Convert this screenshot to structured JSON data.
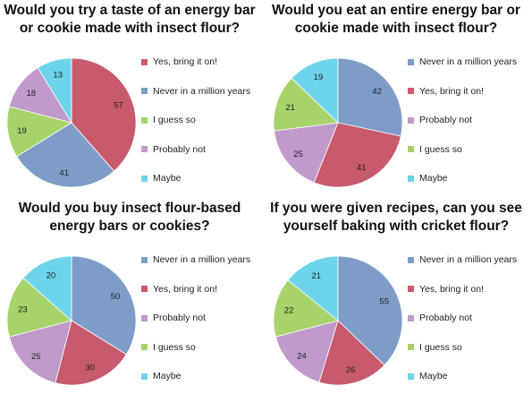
{
  "colors": {
    "Yes, bring it on!": "#C85A6E",
    "Never in a million years": "#7E9CC8",
    "I guess so": "#A6D36A",
    "Probably not": "#C09ACB",
    "Maybe": "#6DD4EC"
  },
  "chart_data": [
    {
      "type": "pie",
      "title": "Would you try a taste of an energy bar or cookie made with insect flour?",
      "categories": [
        "Yes, bring it on!",
        "Never in a million years",
        "I guess so",
        "Probably not",
        "Maybe"
      ],
      "values": [
        57,
        41,
        19,
        18,
        13
      ],
      "legend": [
        "Yes, bring it on!",
        "Never in a million years",
        "I guess so",
        "Probably not",
        "Maybe"
      ],
      "legend_position": "right"
    },
    {
      "type": "pie",
      "title": "Would you eat an entire energy bar or cookie made with insect flour?",
      "categories": [
        "Never in a million years",
        "Yes, bring it on!",
        "Probably not",
        "I guess so",
        "Maybe"
      ],
      "values": [
        42,
        41,
        25,
        21,
        19
      ],
      "legend": [
        "Never in a million years",
        "Yes, bring it on!",
        "Probably not",
        "I guess so",
        "Maybe"
      ],
      "legend_position": "right"
    },
    {
      "type": "pie",
      "title": "Would you buy insect flour-based energy bars or cookies?",
      "categories": [
        "Never in a million years",
        "Yes, bring it on!",
        "Probably not",
        "I guess so",
        "Maybe"
      ],
      "values": [
        50,
        30,
        25,
        23,
        20
      ],
      "legend": [
        "Never in a million years",
        "Yes, bring it on!",
        "Probably not",
        "I guess so",
        "Maybe"
      ],
      "legend_position": "right"
    },
    {
      "type": "pie",
      "title": "If you were given recipes, can you see yourself baking with cricket flour?",
      "categories": [
        "Never in a million years",
        "Yes, bring it on!",
        "Probably not",
        "I guess so",
        "Maybe"
      ],
      "values": [
        55,
        26,
        24,
        22,
        21
      ],
      "legend": [
        "Never in a million years",
        "Yes, bring it on!",
        "Probably not",
        "I guess so",
        "Maybe"
      ],
      "legend_position": "right"
    }
  ]
}
